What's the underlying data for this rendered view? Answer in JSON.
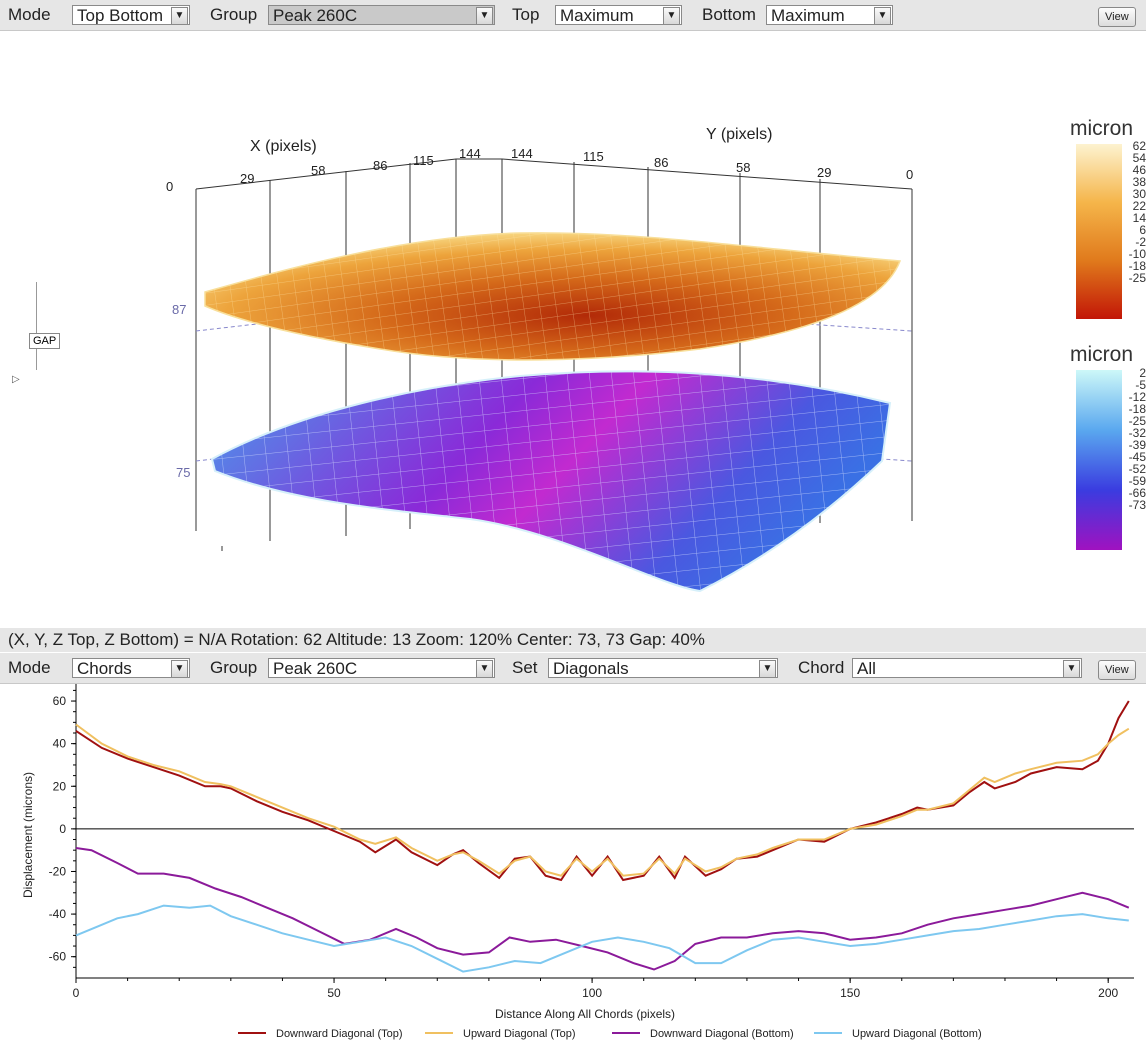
{
  "top_toolbar": {
    "mode_label": "Mode",
    "mode_value": "Top Bottom",
    "group_label": "Group",
    "group_value": "Peak 260C",
    "top_label": "Top",
    "top_value": "Maximum",
    "bottom_label": "Bottom",
    "bottom_value": "Maximum",
    "view_label": "View"
  },
  "surface_plot": {
    "x_axis_label": "X (pixels)",
    "y_axis_label": "Y (pixels)",
    "x_ticks": [
      "0",
      "29",
      "58",
      "86",
      "115",
      "144"
    ],
    "y_ticks": [
      "144",
      "115",
      "86",
      "58",
      "29",
      "0"
    ],
    "z_ticks": [
      "87",
      "75"
    ],
    "gap_button": "GAP",
    "colorbar_top": {
      "title": "micron",
      "labels": [
        "62",
        "54",
        "46",
        "38",
        "30",
        "22",
        "14",
        "6",
        "-2",
        "-10",
        "-18",
        "-25"
      ],
      "colors": [
        "#fdf3d0",
        "#f5b54a",
        "#e07a1c",
        "#c21607"
      ]
    },
    "colorbar_bottom": {
      "title": "micron",
      "labels": [
        "2",
        "-5",
        "-12",
        "-18",
        "-25",
        "-32",
        "-39",
        "-45",
        "-52",
        "-59",
        "-66",
        "-73"
      ],
      "colors": [
        "#cdf8f8",
        "#5aa8ef",
        "#3a3ce0",
        "#a012c0"
      ]
    }
  },
  "status_bar": {
    "text": "(X, Y, Z Top, Z Bottom) = N/A  Rotation: 62 Altitude: 13  Zoom: 120%  Center: 73, 73  Gap: 40%"
  },
  "bottom_toolbar": {
    "mode_label": "Mode",
    "mode_value": "Chords",
    "group_label": "Group",
    "group_value": "Peak 260C",
    "set_label": "Set",
    "set_value": "Diagonals",
    "chord_label": "Chord",
    "chord_value": "All",
    "view_label": "View"
  },
  "chart_data": {
    "type": "line",
    "xlabel": "Distance Along All Chords (pixels)",
    "ylabel": "Displacement (microns)",
    "xlim": [
      0,
      205
    ],
    "ylim": [
      -70,
      68
    ],
    "xticks": [
      0,
      50,
      100,
      150,
      200
    ],
    "yticks": [
      60,
      40,
      20,
      0,
      -20,
      -40,
      -60
    ],
    "legend_position": "bottom",
    "grid": false,
    "series": [
      {
        "name": "Downward Diagonal (Top)",
        "color": "#a01010",
        "x": [
          0,
          5,
          10,
          15,
          20,
          25,
          28,
          30,
          35,
          40,
          45,
          50,
          55,
          58,
          62,
          65,
          70,
          73,
          75,
          78,
          82,
          85,
          88,
          91,
          94,
          97,
          100,
          103,
          106,
          110,
          113,
          116,
          118,
          122,
          125,
          128,
          132,
          135,
          140,
          145,
          150,
          155,
          160,
          163,
          165,
          170,
          173,
          176,
          178,
          182,
          185,
          190,
          195,
          198,
          200,
          202,
          204
        ],
        "y": [
          46,
          38,
          33,
          29,
          25,
          20,
          20,
          19,
          13,
          8,
          4,
          -1,
          -6,
          -11,
          -5,
          -11,
          -17,
          -12,
          -10,
          -16,
          -23,
          -14,
          -13,
          -22,
          -24,
          -13,
          -22,
          -13,
          -24,
          -22,
          -13,
          -23,
          -13,
          -22,
          -19,
          -14,
          -13,
          -10,
          -5,
          -6,
          0,
          3,
          7,
          10,
          9,
          11,
          17,
          22,
          19,
          22,
          26,
          29,
          28,
          32,
          40,
          52,
          60
        ]
      },
      {
        "name": "Upward Diagonal (Top)",
        "color": "#f0c060",
        "x": [
          0,
          5,
          10,
          15,
          20,
          25,
          28,
          30,
          35,
          40,
          45,
          50,
          55,
          58,
          62,
          65,
          70,
          73,
          75,
          78,
          82,
          85,
          88,
          91,
          94,
          97,
          100,
          103,
          106,
          110,
          113,
          116,
          118,
          122,
          125,
          128,
          132,
          135,
          140,
          145,
          150,
          155,
          160,
          163,
          165,
          170,
          173,
          176,
          178,
          182,
          185,
          190,
          195,
          198,
          200,
          202,
          204
        ],
        "y": [
          49,
          40,
          34,
          30,
          27,
          22,
          21,
          20,
          15,
          10,
          5,
          1,
          -5,
          -7,
          -4,
          -9,
          -15,
          -12,
          -11,
          -15,
          -21,
          -15,
          -13,
          -20,
          -22,
          -14,
          -20,
          -14,
          -22,
          -21,
          -14,
          -21,
          -14,
          -20,
          -18,
          -14,
          -12,
          -9,
          -5,
          -5,
          0,
          2,
          6,
          9,
          9,
          12,
          18,
          24,
          22,
          26,
          28,
          31,
          32,
          35,
          40,
          44,
          47
        ]
      },
      {
        "name": "Downward Diagonal (Bottom)",
        "color": "#8b1a9a",
        "x": [
          0,
          3,
          8,
          12,
          17,
          22,
          27,
          32,
          37,
          42,
          47,
          52,
          57,
          62,
          66,
          70,
          75,
          80,
          84,
          88,
          93,
          98,
          103,
          108,
          112,
          116,
          120,
          125,
          130,
          135,
          140,
          145,
          150,
          155,
          160,
          165,
          170,
          175,
          180,
          185,
          190,
          195,
          200,
          204
        ],
        "y": [
          -9,
          -10,
          -16,
          -21,
          -21,
          -23,
          -28,
          -32,
          -37,
          -42,
          -48,
          -54,
          -52,
          -47,
          -51,
          -56,
          -59,
          -58,
          -51,
          -53,
          -52,
          -55,
          -58,
          -63,
          -66,
          -62,
          -54,
          -51,
          -51,
          -49,
          -48,
          -49,
          -52,
          -51,
          -49,
          -45,
          -42,
          -40,
          -38,
          -36,
          -33,
          -30,
          -33,
          -37
        ]
      },
      {
        "name": "Upward Diagonal (Bottom)",
        "color": "#7ec8f0",
        "x": [
          0,
          4,
          8,
          12,
          17,
          22,
          26,
          30,
          35,
          40,
          45,
          50,
          55,
          60,
          65,
          70,
          75,
          80,
          85,
          90,
          95,
          100,
          105,
          110,
          115,
          120,
          125,
          130,
          135,
          140,
          145,
          150,
          155,
          160,
          165,
          170,
          175,
          180,
          185,
          190,
          195,
          200,
          204
        ],
        "y": [
          -50,
          -46,
          -42,
          -40,
          -36,
          -37,
          -36,
          -41,
          -45,
          -49,
          -52,
          -55,
          -53,
          -51,
          -55,
          -61,
          -67,
          -65,
          -62,
          -63,
          -58,
          -53,
          -51,
          -53,
          -56,
          -63,
          -63,
          -57,
          -52,
          -51,
          -53,
          -55,
          -54,
          -52,
          -50,
          -48,
          -47,
          -45,
          -43,
          -41,
          -40,
          -42,
          -43
        ]
      }
    ]
  }
}
